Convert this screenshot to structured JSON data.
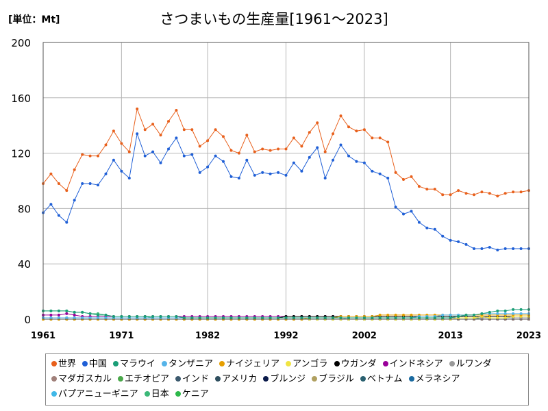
{
  "header": {
    "unit_label": "[単位：Mt]",
    "title": "さつまいもの生産量[1961～2023]"
  },
  "chart_data": {
    "type": "line",
    "ylim": [
      0,
      200
    ],
    "yticks": [
      0,
      40,
      80,
      120,
      160,
      200
    ],
    "xlim": [
      1961,
      2023
    ],
    "xticks": [
      1961,
      1971,
      1982,
      1992,
      2002,
      2013,
      2023
    ],
    "grid": true,
    "legend_position": "bottom",
    "series": [
      {
        "name": "世界",
        "color": "#e8601c",
        "start": 1961,
        "values": [
          98,
          105,
          98,
          93,
          108,
          119,
          118,
          118,
          126,
          136,
          127,
          121,
          152,
          137,
          141,
          133,
          143,
          151,
          137,
          137,
          125,
          129,
          137,
          132,
          122,
          120,
          133,
          121,
          123,
          122,
          123,
          123,
          131,
          125,
          135,
          142,
          121,
          134,
          147,
          139,
          136,
          137,
          131,
          131,
          128,
          106,
          101,
          103,
          96,
          94,
          94,
          90,
          90,
          93,
          91,
          90,
          92,
          91,
          89,
          91,
          92,
          92,
          93
        ]
      },
      {
        "name": "中国",
        "color": "#1f5fd6",
        "start": 1961,
        "values": [
          77,
          83,
          75,
          70,
          86,
          98,
          98,
          97,
          105,
          115,
          107,
          102,
          134,
          118,
          121,
          113,
          123,
          131,
          118,
          119,
          106,
          110,
          118,
          114,
          103,
          102,
          115,
          104,
          106,
          105,
          106,
          104,
          113,
          107,
          117,
          124,
          102,
          115,
          126,
          118,
          114,
          113,
          107,
          105,
          102,
          81,
          76,
          78,
          70,
          66,
          65,
          60,
          57,
          56,
          54,
          51,
          51,
          52,
          50,
          51,
          51,
          51,
          51
        ]
      },
      {
        "name": "マラウイ",
        "color": "#1b9e77",
        "start": 1961,
        "values": [
          6,
          6,
          6,
          6,
          5,
          5,
          4,
          3,
          3,
          2,
          2,
          2,
          2,
          2,
          2,
          2,
          2,
          2,
          1,
          1,
          1,
          1,
          1,
          1,
          1,
          1,
          1,
          1,
          1,
          1,
          1,
          1,
          1,
          1,
          1,
          1,
          1,
          1,
          1,
          1,
          1,
          1,
          1,
          1,
          1,
          1,
          1,
          1,
          1,
          1,
          1,
          1,
          1,
          2,
          3,
          3,
          4,
          5,
          6,
          6,
          7,
          7,
          7
        ]
      },
      {
        "name": "タンザニア",
        "color": "#56b4e9",
        "start": 1961,
        "values": [
          1,
          1,
          1,
          1,
          1,
          1,
          1,
          1,
          1,
          1,
          1,
          1,
          1,
          1,
          1,
          1,
          1,
          1,
          1,
          1,
          1,
          1,
          1,
          1,
          1,
          1,
          1,
          1,
          1,
          1,
          1,
          1,
          1,
          1,
          1,
          1,
          1,
          1,
          1,
          1,
          1,
          1,
          1,
          1,
          1,
          1,
          1,
          1,
          2,
          2,
          2,
          3,
          3,
          3,
          3,
          3,
          4,
          4,
          4,
          4,
          4,
          4,
          4
        ]
      },
      {
        "name": "ナイジェリア",
        "color": "#e69f00",
        "start": 1961,
        "values": [
          0,
          0,
          0,
          0,
          0,
          0,
          0,
          0,
          0,
          0,
          0,
          0,
          0,
          0,
          0,
          0,
          0,
          0,
          0,
          0,
          0,
          0,
          0,
          0,
          0,
          0,
          0,
          0,
          0,
          0,
          0,
          0,
          0,
          0,
          1,
          1,
          1,
          1,
          2,
          2,
          2,
          2,
          2,
          3,
          3,
          3,
          3,
          3,
          3,
          3,
          3,
          3,
          3,
          3,
          3,
          3,
          3,
          3,
          3,
          3,
          3,
          3,
          3
        ]
      },
      {
        "name": "アンゴラ",
        "color": "#f0e442",
        "start": 1961,
        "values": [
          0,
          0,
          0,
          0,
          0,
          0,
          0,
          0,
          0,
          0,
          0,
          0,
          0,
          0,
          0,
          0,
          0,
          0,
          0,
          0,
          0,
          0,
          0,
          0,
          0,
          0,
          0,
          0,
          0,
          0,
          0,
          0,
          0,
          0,
          0,
          0,
          0,
          0,
          0,
          0,
          0,
          0,
          0,
          0,
          0,
          0,
          0,
          0,
          0,
          0,
          0,
          0,
          0,
          1,
          1,
          1,
          2,
          1,
          1,
          1,
          2,
          2,
          2
        ]
      },
      {
        "name": "ウガンダ",
        "color": "#000000",
        "start": 1961,
        "values": [
          1,
          1,
          1,
          1,
          1,
          1,
          1,
          1,
          1,
          1,
          1,
          1,
          1,
          1,
          1,
          1,
          1,
          1,
          1,
          1,
          1,
          1,
          1,
          1,
          1,
          1,
          1,
          1,
          1,
          1,
          1,
          2,
          2,
          2,
          2,
          2,
          2,
          2,
          2,
          2,
          2,
          2,
          2,
          2,
          2,
          2,
          2,
          2,
          2,
          2,
          2,
          2,
          2,
          2,
          2,
          2,
          2,
          2,
          2,
          2,
          2,
          2,
          2
        ]
      },
      {
        "name": "インドネシア",
        "color": "#990099",
        "start": 1961,
        "values": [
          3,
          3,
          3,
          4,
          3,
          2,
          2,
          2,
          2,
          2,
          2,
          2,
          2,
          2,
          2,
          2,
          2,
          2,
          2,
          2,
          2,
          2,
          2,
          2,
          2,
          2,
          2,
          2,
          2,
          2,
          2,
          2,
          2,
          2,
          2,
          2,
          2,
          2,
          2,
          2,
          2,
          2,
          2,
          2,
          2,
          2,
          2,
          2,
          2,
          2,
          2,
          2,
          2,
          2,
          2,
          2,
          2,
          2,
          2,
          2,
          2,
          2,
          2
        ]
      },
      {
        "name": "ルワンダ",
        "color": "#999999",
        "start": 1961,
        "values": [
          0,
          0,
          0,
          0,
          0,
          0,
          0,
          0,
          0,
          0,
          0,
          0,
          0,
          0,
          0,
          0,
          0,
          0,
          0,
          0,
          0,
          0,
          0,
          0,
          0,
          0,
          0,
          0,
          0,
          0,
          0,
          0,
          0,
          0,
          0,
          0,
          0,
          0,
          0,
          1,
          1,
          1,
          1,
          1,
          1,
          1,
          1,
          1,
          1,
          1,
          1,
          1,
          1,
          1,
          1,
          1,
          1,
          1,
          1,
          1,
          1,
          1,
          1
        ]
      },
      {
        "name": "マダガスカル",
        "color": "#a0807a",
        "start": 1961,
        "values": [
          0,
          0,
          0,
          0,
          0,
          0,
          0,
          0,
          0,
          0,
          0,
          0,
          0,
          0,
          0,
          0,
          0,
          0,
          0,
          0,
          0,
          0,
          0,
          0,
          0,
          0,
          0,
          0,
          0,
          0,
          0,
          0,
          0,
          0,
          0,
          0,
          0,
          0,
          0,
          0,
          0,
          0,
          0,
          0,
          0,
          0,
          0,
          0,
          0,
          0,
          0,
          0,
          0,
          0,
          0,
          0,
          0,
          0,
          0,
          0,
          0,
          0,
          0
        ]
      },
      {
        "name": "エチオピア",
        "color": "#4aa84a",
        "start": 1961,
        "values": [
          0,
          0,
          0,
          0,
          0,
          0,
          0,
          0,
          0,
          0,
          0,
          0,
          0,
          0,
          0,
          0,
          0,
          0,
          0,
          0,
          0,
          0,
          0,
          0,
          0,
          0,
          0,
          0,
          0,
          0,
          0,
          0,
          0,
          0,
          0,
          0,
          0,
          0,
          0,
          0,
          0,
          0,
          0,
          0,
          0,
          0,
          0,
          0,
          0,
          0,
          0,
          0,
          0,
          0,
          0,
          0,
          1,
          1,
          1,
          1,
          1,
          1,
          1
        ]
      },
      {
        "name": "インド",
        "color": "#3c5a6e",
        "start": 1961,
        "values": [
          0,
          0,
          0,
          0,
          0,
          0,
          0,
          0,
          0,
          0,
          0,
          0,
          0,
          0,
          0,
          0,
          0,
          0,
          0,
          0,
          0,
          0,
          0,
          0,
          0,
          0,
          0,
          0,
          0,
          0,
          0,
          0,
          0,
          0,
          0,
          0,
          0,
          0,
          0,
          0,
          0,
          0,
          0,
          0,
          0,
          0,
          0,
          0,
          0,
          0,
          0,
          0,
          0,
          0,
          0,
          0,
          0,
          0,
          0,
          0,
          0,
          0,
          0
        ]
      },
      {
        "name": "アメリカ",
        "color": "#2f4f5f",
        "start": 1961,
        "values": [
          0,
          0,
          0,
          0,
          0,
          0,
          0,
          0,
          0,
          0,
          0,
          0,
          0,
          0,
          0,
          0,
          0,
          0,
          0,
          0,
          0,
          0,
          0,
          0,
          0,
          0,
          0,
          0,
          0,
          0,
          0,
          0,
          0,
          0,
          0,
          0,
          0,
          0,
          0,
          0,
          0,
          0,
          0,
          0,
          0,
          0,
          0,
          0,
          0,
          0,
          0,
          0,
          0,
          0,
          0,
          0,
          0,
          0,
          0,
          0,
          0,
          0,
          0
        ]
      },
      {
        "name": "ブルンジ",
        "color": "#0a1a4a",
        "start": 1961,
        "values": [
          0,
          0,
          0,
          0,
          0,
          0,
          0,
          0,
          0,
          0,
          0,
          0,
          0,
          0,
          0,
          0,
          0,
          0,
          0,
          0,
          0,
          0,
          0,
          0,
          0,
          0,
          0,
          0,
          0,
          0,
          0,
          0,
          0,
          0,
          0,
          0,
          0,
          0,
          0,
          0,
          0,
          0,
          0,
          0,
          0,
          0,
          0,
          0,
          0,
          0,
          0,
          0,
          0,
          0,
          0,
          0,
          0,
          0,
          0,
          0,
          0,
          0,
          0
        ]
      },
      {
        "name": "ブラジル",
        "color": "#b0a060",
        "start": 1961,
        "values": [
          0,
          0,
          0,
          0,
          0,
          0,
          0,
          0,
          0,
          0,
          0,
          0,
          0,
          0,
          0,
          0,
          0,
          0,
          0,
          0,
          0,
          0,
          0,
          0,
          0,
          0,
          0,
          0,
          0,
          0,
          0,
          0,
          0,
          0,
          0,
          0,
          0,
          0,
          0,
          0,
          0,
          0,
          0,
          0,
          0,
          0,
          0,
          0,
          0,
          0,
          0,
          0,
          0,
          0,
          0,
          0,
          0,
          0,
          0,
          0,
          0,
          0,
          0
        ]
      },
      {
        "name": "ベトナム",
        "color": "#2a6070",
        "start": 1961,
        "values": [
          0,
          0,
          0,
          0,
          0,
          0,
          0,
          0,
          0,
          0,
          0,
          0,
          0,
          0,
          0,
          0,
          0,
          0,
          0,
          0,
          0,
          0,
          0,
          0,
          0,
          0,
          0,
          0,
          0,
          0,
          0,
          0,
          0,
          0,
          0,
          0,
          0,
          0,
          0,
          0,
          0,
          0,
          0,
          0,
          0,
          0,
          0,
          0,
          0,
          0,
          0,
          0,
          0,
          0,
          0,
          0,
          0,
          0,
          0,
          0,
          0,
          0,
          0
        ]
      },
      {
        "name": "メラネシア",
        "color": "#1a6aa0",
        "start": 1961,
        "values": [
          0,
          0,
          0,
          0,
          0,
          0,
          0,
          0,
          0,
          0,
          0,
          0,
          0,
          0,
          0,
          0,
          0,
          0,
          0,
          0,
          0,
          0,
          0,
          0,
          0,
          0,
          0,
          0,
          0,
          0,
          0,
          0,
          0,
          0,
          0,
          0,
          0,
          0,
          0,
          0,
          0,
          0,
          0,
          0,
          0,
          0,
          0,
          0,
          0,
          0,
          0,
          0,
          0,
          0,
          0,
          0,
          0,
          0,
          0,
          0,
          0,
          0,
          0
        ]
      },
      {
        "name": "パプアニューギニア",
        "color": "#40b8e8",
        "start": 1961,
        "values": [
          0,
          0,
          0,
          0,
          0,
          0,
          0,
          0,
          0,
          0,
          0,
          0,
          0,
          0,
          0,
          0,
          0,
          0,
          0,
          0,
          0,
          0,
          0,
          0,
          0,
          0,
          0,
          0,
          0,
          0,
          0,
          0,
          0,
          0,
          0,
          0,
          0,
          0,
          0,
          0,
          0,
          0,
          0,
          0,
          0,
          0,
          0,
          0,
          0,
          0,
          0,
          0,
          0,
          0,
          0,
          0,
          0,
          0,
          0,
          0,
          0,
          0,
          0
        ]
      },
      {
        "name": "日本",
        "color": "#3cb878",
        "start": 1961,
        "values": [
          6,
          6,
          6,
          6,
          5,
          5,
          4,
          4,
          3,
          2,
          2,
          2,
          2,
          2,
          1,
          1,
          1,
          1,
          1,
          1,
          1,
          1,
          1,
          1,
          1,
          1,
          1,
          1,
          1,
          1,
          1,
          1,
          1,
          1,
          1,
          1,
          1,
          1,
          1,
          1,
          1,
          1,
          1,
          1,
          1,
          1,
          1,
          1,
          1,
          1,
          1,
          1,
          1,
          1,
          1,
          1,
          1,
          1,
          1,
          1,
          1,
          1,
          1
        ]
      },
      {
        "name": "ケニア",
        "color": "#2db84a",
        "start": 1961,
        "values": [
          0,
          0,
          0,
          0,
          0,
          0,
          0,
          0,
          0,
          0,
          0,
          0,
          0,
          0,
          0,
          0,
          0,
          0,
          0,
          0,
          0,
          0,
          0,
          0,
          0,
          0,
          0,
          0,
          0,
          0,
          0,
          0,
          0,
          0,
          0,
          0,
          0,
          0,
          0,
          0,
          0,
          0,
          0,
          0,
          0,
          0,
          0,
          0,
          0,
          0,
          0,
          0,
          0,
          0,
          0,
          0,
          0,
          0,
          0,
          0,
          0,
          0,
          0
        ]
      }
    ]
  }
}
